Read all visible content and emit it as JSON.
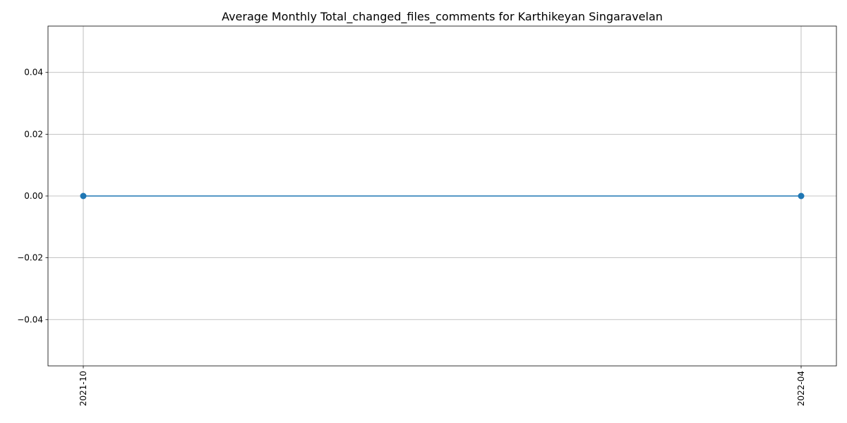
{
  "chart_data": {
    "type": "line",
    "title": "Average Monthly Total_changed_files_comments for Karthikeyan Singaravelan",
    "xlabel": "",
    "ylabel": "",
    "x": [
      "2021-10",
      "2022-04"
    ],
    "series": [
      {
        "values": [
          0.0,
          0.0
        ],
        "color": "#1f77b4",
        "marker": "circle"
      }
    ],
    "ylim": [
      -0.055,
      0.055
    ],
    "yticks": [
      -0.04,
      -0.02,
      0.0,
      0.02,
      0.04
    ],
    "ytick_labels": [
      "−0.04",
      "−0.02",
      "0.00",
      "0.02",
      "0.04"
    ],
    "xtick_labels": [
      "2021-10",
      "2022-04"
    ],
    "grid": true,
    "legend": "none"
  }
}
